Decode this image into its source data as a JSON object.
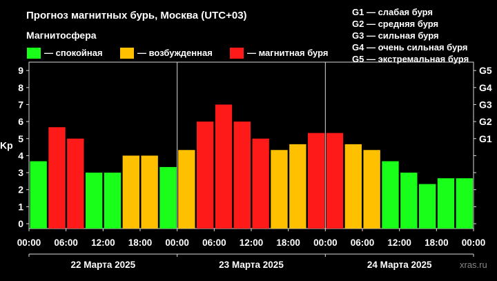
{
  "title": "Прогноз магнитных бурь, Москва (UTC+03)",
  "subtitle": "Магнитосфера",
  "legend": [
    {
      "label": "— спокойная",
      "color": "#19ff19"
    },
    {
      "label": "— возбужденная",
      "color": "#ffc000"
    },
    {
      "label": "— магнитная буря",
      "color": "#ff1a1a"
    }
  ],
  "g_legend": [
    "G1 — слабая буря",
    "G2 — средняя буря",
    "G3 — сильная буря",
    "G4 — очень сильная буря",
    "G5 — экстремальная буря"
  ],
  "watermark": "xras.ru",
  "chart_data": {
    "type": "bar",
    "ylabel": "Kp",
    "ylim": [
      0,
      9
    ],
    "yticks": [
      "0",
      "1",
      "2",
      "3",
      "4",
      "5",
      "6",
      "7",
      "8",
      "9"
    ],
    "right_ticks": [
      "G1",
      "G2",
      "G3",
      "G4",
      "G5"
    ],
    "x_ticks": [
      "00:00",
      "06:00",
      "12:00",
      "18:00",
      "00:00",
      "06:00",
      "12:00",
      "18:00",
      "00:00",
      "06:00",
      "12:00",
      "18:00",
      "00:00"
    ],
    "days": [
      "22 Марта 2025",
      "23 Марта 2025",
      "24 Марта 2025"
    ],
    "values": [
      3.67,
      5.67,
      5.0,
      3.0,
      3.0,
      4.0,
      4.0,
      3.33,
      4.33,
      6.0,
      7.0,
      6.0,
      5.0,
      4.33,
      4.67,
      5.33,
      5.33,
      4.67,
      4.33,
      3.67,
      3.0,
      2.33,
      2.67,
      2.67
    ],
    "colors": {
      "quiet": "#19ff19",
      "active": "#ffc000",
      "storm": "#ff1a1a"
    },
    "grid": false
  }
}
